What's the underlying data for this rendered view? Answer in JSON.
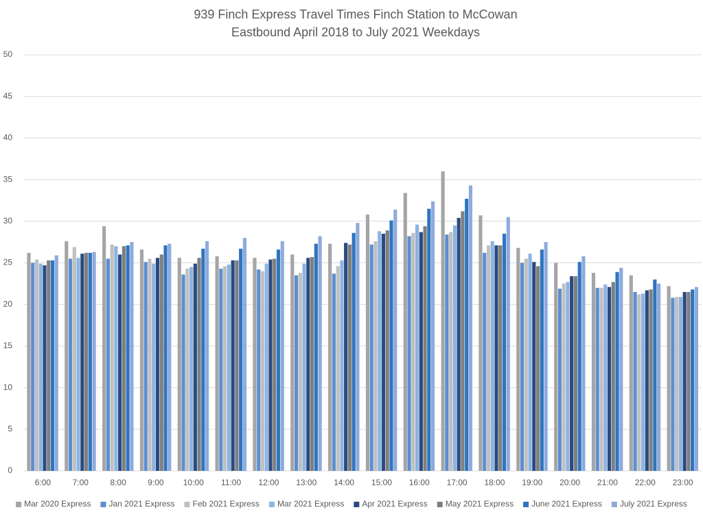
{
  "chart_data": {
    "type": "bar",
    "title": "939 Finch Express Travel Times Finch Station to McCowan",
    "subtitle": "Eastbound April 2018 to July 2021 Weekdays",
    "categories": [
      "6:00",
      "7:00",
      "8:00",
      "9:00",
      "10:00",
      "11:00",
      "12:00",
      "13:00",
      "14:00",
      "15:00",
      "16:00",
      "17:00",
      "18:00",
      "19:00",
      "20:00",
      "21:00",
      "22:00",
      "23:00"
    ],
    "series": [
      {
        "name": "Mar 2020 Express",
        "color": "#a5a5a5",
        "values": [
          26.2,
          27.6,
          29.4,
          26.6,
          25.6,
          25.8,
          25.6,
          26.0,
          27.3,
          30.8,
          33.4,
          36.0,
          30.7,
          26.8,
          25.0,
          23.8,
          23.5,
          22.2
        ]
      },
      {
        "name": "Jan 2021 Express",
        "color": "#5b8fd1",
        "values": [
          25.0,
          25.5,
          25.5,
          25.1,
          23.6,
          24.3,
          24.2,
          23.5,
          23.7,
          27.2,
          28.2,
          28.4,
          26.2,
          25.0,
          21.9,
          22.0,
          21.5,
          20.8
        ]
      },
      {
        "name": "Feb 2021 Express",
        "color": "#c0c0c0",
        "values": [
          25.4,
          26.9,
          27.2,
          25.5,
          24.3,
          24.6,
          24.0,
          23.8,
          24.6,
          27.6,
          28.6,
          28.7,
          27.1,
          25.5,
          22.5,
          22.0,
          21.2,
          20.9
        ]
      },
      {
        "name": "Mar 2021 Express",
        "color": "#8db4e2",
        "values": [
          24.9,
          25.6,
          27.0,
          24.9,
          24.5,
          24.8,
          24.9,
          24.9,
          25.3,
          28.8,
          29.6,
          29.5,
          27.6,
          26.1,
          22.7,
          22.4,
          21.3,
          20.9
        ]
      },
      {
        "name": "Apr 2021 Express",
        "color": "#2a4a80",
        "values": [
          24.7,
          26.1,
          26.0,
          25.6,
          24.9,
          25.3,
          25.4,
          25.6,
          27.4,
          28.5,
          28.7,
          30.4,
          27.1,
          25.1,
          23.4,
          22.1,
          21.7,
          21.5
        ]
      },
      {
        "name": "May 2021 Express",
        "color": "#7f7f7f",
        "values": [
          25.3,
          26.2,
          27.0,
          26.0,
          25.6,
          25.3,
          25.5,
          25.7,
          27.2,
          28.9,
          29.4,
          31.2,
          27.1,
          24.6,
          23.4,
          22.7,
          21.8,
          21.5
        ]
      },
      {
        "name": "June 2021 Express",
        "color": "#2e75c0",
        "values": [
          25.3,
          26.2,
          27.1,
          27.1,
          26.7,
          26.7,
          26.6,
          27.3,
          28.6,
          30.1,
          31.5,
          32.7,
          28.5,
          26.6,
          25.1,
          23.9,
          23.0,
          21.8
        ]
      },
      {
        "name": "July 2021 Express",
        "color": "#8faadc",
        "values": [
          25.9,
          26.3,
          27.5,
          27.3,
          27.6,
          28.0,
          27.6,
          28.2,
          29.8,
          31.4,
          32.4,
          34.3,
          30.5,
          27.5,
          25.8,
          24.4,
          22.5,
          22.1
        ]
      }
    ],
    "ylim": [
      0,
      50
    ],
    "yticks": [
      0,
      5,
      10,
      15,
      20,
      25,
      30,
      35,
      40,
      45,
      50
    ],
    "grid": true,
    "legend": "bottom"
  }
}
